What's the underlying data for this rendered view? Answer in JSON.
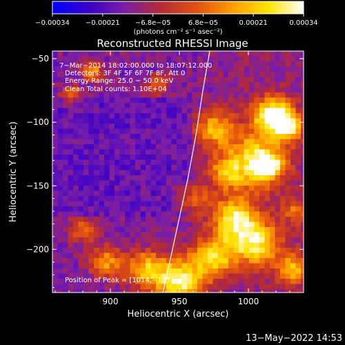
{
  "chart_data": {
    "type": "heatmap",
    "title": "Reconstructed RHESSI Image",
    "xlabel": "Heliocentric X (arcsec)",
    "ylabel": "Heliocentric Y (arcsec)",
    "xlim": [
      858,
      1040
    ],
    "ylim": [
      -234,
      -44
    ],
    "x_ticks": [
      900,
      950,
      1000
    ],
    "y_ticks": [
      -50,
      -100,
      -150,
      -200
    ],
    "x_tick_labels": [
      "900",
      "950",
      "1000"
    ],
    "y_tick_labels": [
      "−50",
      "−100",
      "−150",
      "−200"
    ],
    "colorbar": {
      "range": [
        -0.00034,
        0.00034
      ],
      "tick_labels": [
        "−0.00034",
        "−0.00021",
        "−6.8e−05",
        "6.8e−05",
        "0.00021",
        "0.00034"
      ],
      "units_label": "(photons cm⁻² s⁻¹ asec⁻²)"
    },
    "info_lines": [
      "7−Mar−2014 18:02:00.000  to  18:07:12.000",
      "Detectors: 3F 4F 5F 6F 7F 8F, Att 0",
      "Energy Range: 25.0 − 50.0 keV",
      "Clean     Total counts: 1.10E+04"
    ],
    "peak_label": "Position of Peak = [1014,−135]",
    "limb": [
      [
        938,
        -234
      ],
      [
        944,
        -205
      ],
      [
        950,
        -175
      ],
      [
        956,
        -145
      ],
      [
        962,
        -110
      ],
      [
        967,
        -75
      ],
      [
        972,
        -44
      ]
    ],
    "colormap": [
      "#0000ff",
      "#3a00c8",
      "#7a1ea8",
      "#b52a36",
      "#e05010",
      "#ff9a00",
      "#ffe300",
      "#ffffff"
    ]
  },
  "footer": {
    "timestamp": "13−May−2022 14:53"
  }
}
